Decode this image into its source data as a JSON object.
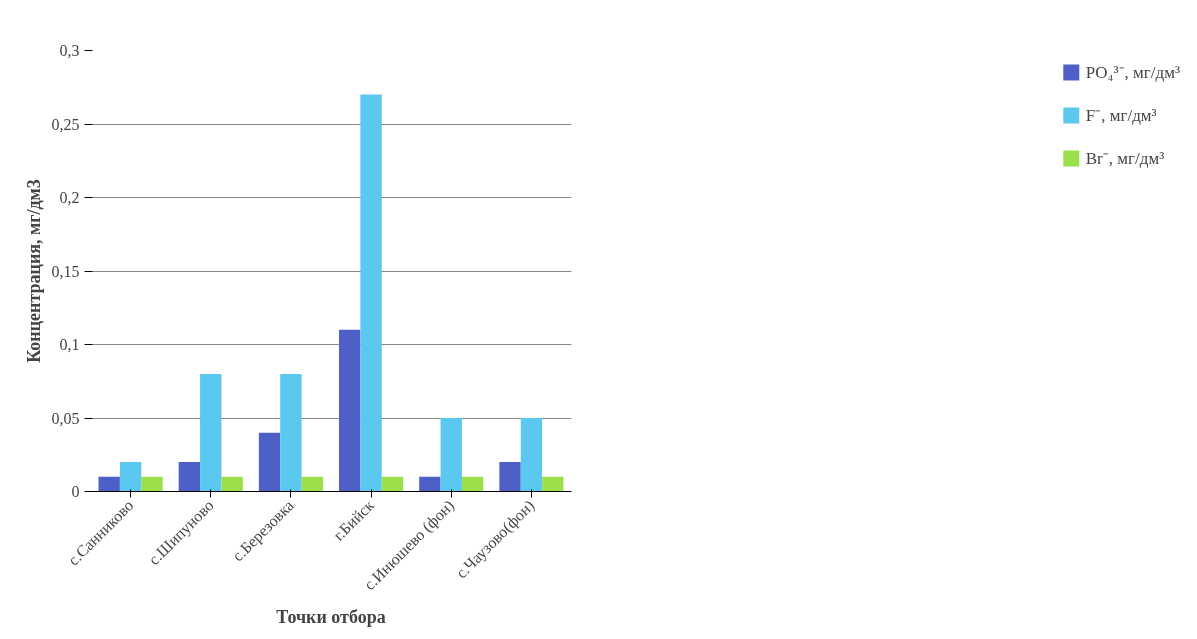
{
  "chart_data": {
    "type": "bar",
    "xlabel": "Точки отбора",
    "ylabel": "Концентрация, мг/дм3",
    "categories": [
      "с.Санниково",
      "с.Шипуново",
      "с.Березовка",
      "г.Бийск",
      "с.Инюшево (фон)",
      "с.Чаузово(фон)"
    ],
    "series": [
      {
        "name": "PO₄³⁻, мг/дм³",
        "color": "#4f5fc8",
        "values": [
          0.01,
          0.02,
          0.04,
          0.11,
          0.01,
          0.02
        ]
      },
      {
        "name": "F⁻, мг/дм³",
        "color": "#5bc8f0",
        "values": [
          0.02,
          0.08,
          0.08,
          0.27,
          0.05,
          0.05
        ]
      },
      {
        "name": "Br⁻, мг/дм³",
        "color": "#9be04a",
        "values": [
          0.01,
          0.01,
          0.01,
          0.01,
          0.01,
          0.01
        ]
      }
    ],
    "ylim": [
      0,
      0.3
    ],
    "yticks": [
      {
        "value": 0,
        "label": "0"
      },
      {
        "value": 0.05,
        "label": "0,05"
      },
      {
        "value": 0.1,
        "label": "0,1"
      },
      {
        "value": 0.15,
        "label": "0,15"
      },
      {
        "value": 0.2,
        "label": "0,2"
      },
      {
        "value": 0.25,
        "label": "0,25"
      },
      {
        "value": 0.3,
        "label": "0,3"
      }
    ],
    "grid": "y",
    "legend": "right"
  }
}
